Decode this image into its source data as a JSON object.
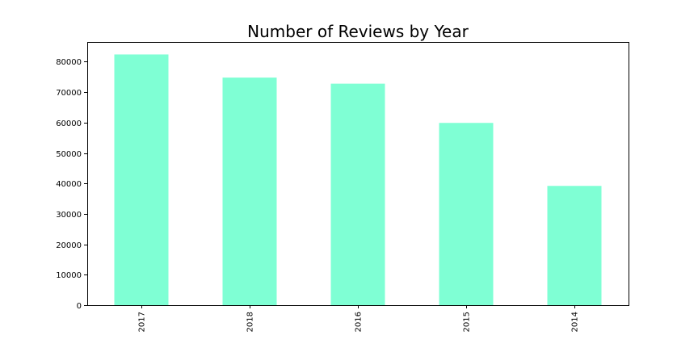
{
  "chart_data": {
    "type": "bar",
    "title": "Number of Reviews by Year",
    "xlabel": "",
    "ylabel": "",
    "categories": [
      "2017",
      "2018",
      "2016",
      "2015",
      "2014"
    ],
    "values": [
      82400,
      74800,
      72800,
      59900,
      39200
    ],
    "ylim": [
      0,
      86500
    ],
    "yticks": [
      0,
      10000,
      20000,
      30000,
      40000,
      50000,
      60000,
      70000,
      80000
    ],
    "ytick_labels": [
      "0",
      "10000",
      "20000",
      "30000",
      "40000",
      "50000",
      "60000",
      "70000",
      "80000"
    ],
    "grid": false,
    "legend": "none",
    "bar_color": "#7fffd4",
    "axis_color": "#000000"
  }
}
